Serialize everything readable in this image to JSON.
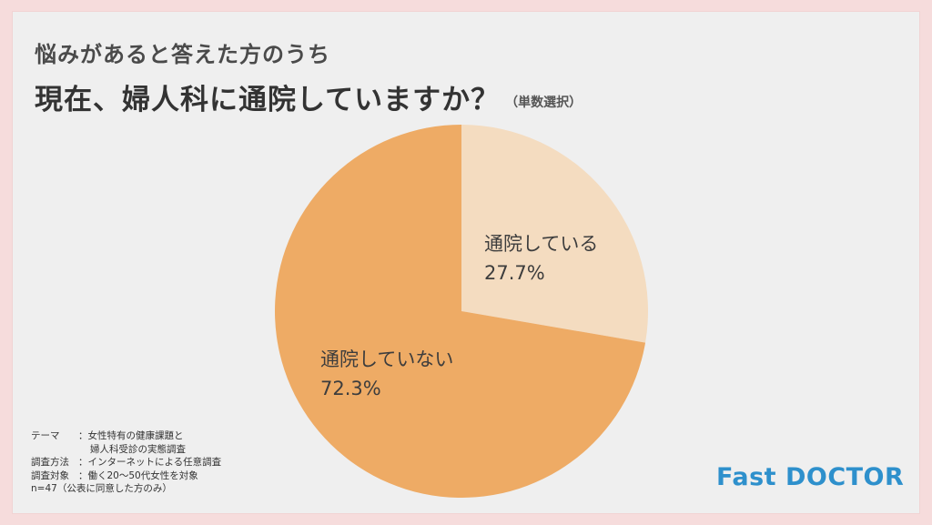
{
  "title": {
    "line1": "悩みがあると答えた方のうち",
    "line2": "現在、婦人科に通院していますか？",
    "note": "（単数選択）"
  },
  "chart_data": {
    "type": "pie",
    "slices": [
      {
        "label": "通院している",
        "value": 27.7,
        "value_text": "27.7%",
        "color": "#f4dcc0"
      },
      {
        "label": "通院していない",
        "value": 72.3,
        "value_text": "72.3%",
        "color": "#eeab65"
      }
    ],
    "start": "12 o'clock",
    "direction": "clockwise"
  },
  "survey": [
    {
      "key": "テーマ",
      "sep": "：",
      "value": "女性特有の健康課題と"
    },
    {
      "key": "",
      "sep": "",
      "value": "婦人科受診の実態調査"
    },
    {
      "key": "調査方法",
      "sep": "：",
      "value": "インターネットによる任意調査"
    },
    {
      "key": "調査対象",
      "sep": "：",
      "value": "働く20〜50代女性を対象"
    },
    {
      "key": "",
      "sep": "",
      "value": "n=47（公表に同意した方のみ）"
    }
  ],
  "logo": "Fast DOCTOR"
}
